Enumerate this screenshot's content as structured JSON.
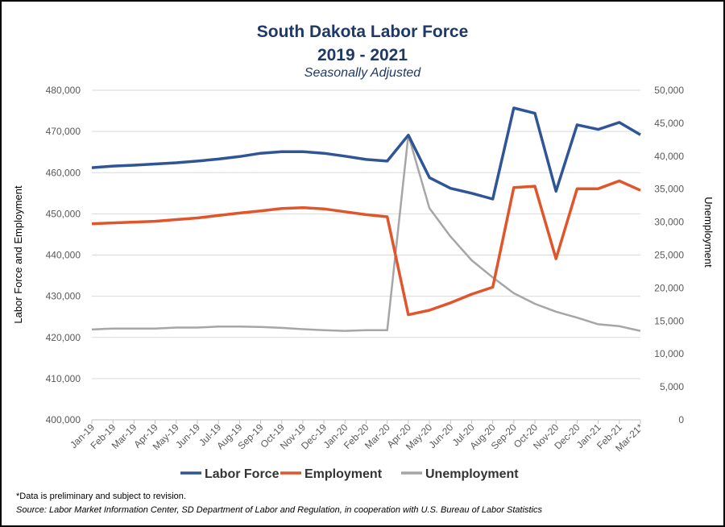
{
  "chart_data": {
    "type": "line",
    "title": "South Dakota Labor Force",
    "title_line2": "2019 - 2021",
    "subtitle": "Seasonally Adjusted",
    "ylabel_left": "Labor Force and Employment",
    "ylabel_right": "Unemployment",
    "ylim_left": [
      400000,
      480000
    ],
    "ylim_right": [
      0,
      50000
    ],
    "yticks_left": [
      "400,000",
      "410,000",
      "420,000",
      "430,000",
      "440,000",
      "450,000",
      "460,000",
      "470,000",
      "480,000"
    ],
    "yticks_right": [
      "0",
      "5,000",
      "10,000",
      "15,000",
      "20,000",
      "25,000",
      "30,000",
      "35,000",
      "40,000",
      "45,000",
      "50,000"
    ],
    "categories": [
      "Jan-19",
      "Feb-19",
      "Mar-19",
      "Apr-19",
      "May-19",
      "Jun-19",
      "Jul-19",
      "Aug-19",
      "Sep-19",
      "Oct-19",
      "Nov-19",
      "Dec-19",
      "Jan-20",
      "Feb-20",
      "Mar-20",
      "Apr-20",
      "May-20",
      "Jun-20",
      "Jul-20",
      "Aug-20",
      "Sep-20",
      "Oct-20",
      "Nov-20",
      "Dec-20",
      "Jan-21",
      "Feb-21",
      "Mar-21*"
    ],
    "series": [
      {
        "name": "Labor Force",
        "axis": "left",
        "color": "#2f5597",
        "values": [
          461200,
          461600,
          461800,
          462100,
          462400,
          462800,
          463300,
          463900,
          464700,
          465100,
          465100,
          464700,
          464000,
          463200,
          462800,
          469100,
          458800,
          456200,
          455000,
          453600,
          475700,
          474400,
          455500,
          471600,
          470500,
          472200,
          469200
        ]
      },
      {
        "name": "Employment",
        "axis": "left",
        "color": "#e0562a",
        "values": [
          447600,
          447800,
          448000,
          448200,
          448600,
          449000,
          449600,
          450200,
          450700,
          451300,
          451500,
          451200,
          450500,
          449800,
          449300,
          425500,
          426600,
          428400,
          430500,
          432200,
          456400,
          456700,
          439100,
          456100,
          456100,
          458000,
          455700
        ]
      },
      {
        "name": "Unemployment",
        "axis": "right",
        "color": "#a6a6a6",
        "values": [
          13700,
          13850,
          13850,
          13850,
          14000,
          14000,
          14150,
          14150,
          14100,
          13950,
          13750,
          13600,
          13500,
          13600,
          13600,
          43200,
          32100,
          27800,
          24200,
          21600,
          19200,
          17600,
          16400,
          15500,
          14500,
          14200,
          13500
        ]
      }
    ],
    "legend_position": "bottom"
  },
  "footnotes": {
    "preliminary": "*Data is preliminary and subject to revision.",
    "source": "Source: Labor Market Information Center, SD Department of Labor and Regulation, in cooperation with U.S. Bureau of Labor Statistics"
  }
}
